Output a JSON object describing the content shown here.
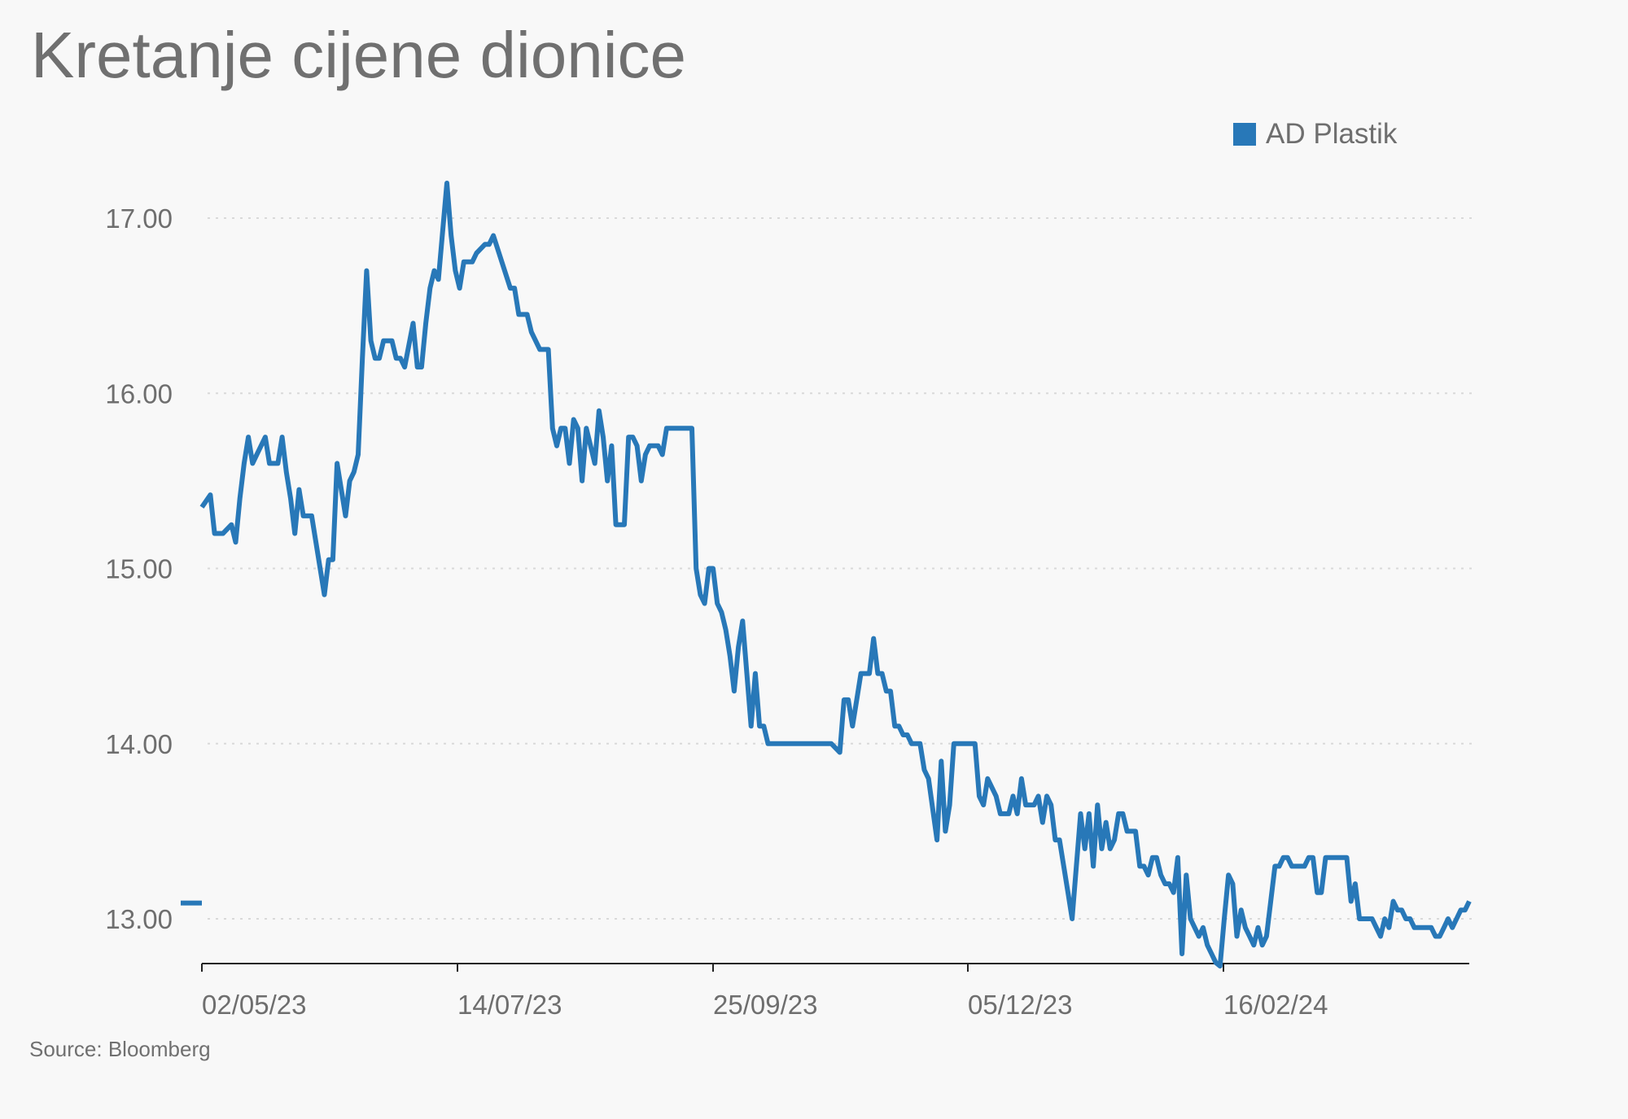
{
  "title": "Kretanje cijene dionice",
  "source": "Source: Bloomberg",
  "colors": {
    "series": "#2878b8",
    "grid": "#d9d9d9",
    "axis": "#222222"
  },
  "chart_data": {
    "type": "line",
    "title": "Kretanje cijene dionice",
    "xlabel": "",
    "ylabel": "",
    "ylim": [
      12.73,
      17.2
    ],
    "y_ticks": [
      "13.00",
      "14.00",
      "15.00",
      "16.00",
      "17.00"
    ],
    "x_ticks": [
      "02/05/23",
      "14/07/23",
      "25/09/23",
      "05/12/23",
      "16/02/24"
    ],
    "grid": "horizontal dotted",
    "legend": "top-right",
    "series": [
      {
        "name": "AD Plastik",
        "x": [
          0,
          2,
          3,
          5,
          7,
          8,
          9,
          10,
          11,
          12,
          13,
          15,
          16,
          17,
          18,
          19,
          20,
          21,
          22,
          23,
          24,
          25,
          26,
          28,
          29,
          30,
          31,
          32,
          34,
          35,
          36,
          37,
          38,
          39,
          40,
          41,
          42,
          43,
          45,
          46,
          47,
          48,
          50,
          51,
          52,
          53,
          54,
          55,
          56,
          58,
          59,
          60,
          61,
          62,
          63,
          64,
          65,
          67,
          68,
          69,
          71,
          73,
          74,
          75,
          76,
          77,
          78,
          80,
          81,
          82,
          83,
          84,
          85,
          86,
          87,
          88,
          89,
          90,
          91,
          93,
          94,
          95,
          96,
          97,
          98,
          99,
          100,
          101,
          102,
          103,
          104,
          105,
          106,
          107,
          108,
          109,
          110,
          112,
          113,
          114,
          115,
          116,
          117,
          118,
          119,
          120,
          121,
          122,
          123,
          124,
          125,
          126,
          127,
          128,
          129,
          130,
          131,
          132,
          133,
          134,
          135,
          136,
          137,
          139,
          140,
          141,
          143,
          144,
          145,
          146,
          147,
          148,
          149,
          151,
          152,
          153,
          154,
          155,
          156,
          158,
          159,
          160,
          161,
          162,
          163,
          164,
          165,
          166,
          167,
          168,
          169,
          170,
          171,
          172,
          174,
          175,
          176,
          177,
          178,
          179,
          180,
          182,
          183,
          184,
          185,
          186,
          187,
          188,
          189,
          190,
          191,
          192,
          193,
          194,
          195,
          196,
          197,
          198,
          199,
          200,
          201,
          202,
          203,
          204,
          205,
          206,
          207,
          208,
          209,
          210,
          211,
          212,
          213,
          214,
          215,
          216,
          217,
          218,
          219,
          220,
          221,
          222,
          223,
          224,
          225,
          226,
          227,
          228,
          229,
          230,
          231,
          232,
          233,
          234,
          235,
          236,
          237,
          238,
          239,
          240,
          241,
          242,
          243,
          244,
          245,
          246,
          247,
          248,
          249,
          250,
          251,
          252,
          253,
          254,
          255,
          256,
          257,
          258,
          259,
          260,
          261,
          262,
          263,
          264,
          265,
          266,
          267,
          268,
          269,
          270,
          271,
          272,
          273,
          274,
          275,
          276,
          277,
          278,
          279,
          280,
          281,
          282,
          283,
          284,
          285,
          286,
          287,
          288,
          289,
          290,
          291,
          292,
          293,
          294,
          295,
          296,
          297,
          298,
          299,
          300
        ],
        "y": [
          15.35,
          15.42,
          15.2,
          15.2,
          15.25,
          15.15,
          15.4,
          15.6,
          15.75,
          15.6,
          15.65,
          15.75,
          15.6,
          15.6,
          15.6,
          15.75,
          15.55,
          15.4,
          15.2,
          15.45,
          15.3,
          15.3,
          15.3,
          15.0,
          14.85,
          15.05,
          15.05,
          15.6,
          15.3,
          15.5,
          15.55,
          15.65,
          16.2,
          16.7,
          16.3,
          16.2,
          16.2,
          16.3,
          16.3,
          16.2,
          16.2,
          16.15,
          16.4,
          16.15,
          16.15,
          16.4,
          16.6,
          16.7,
          16.65,
          17.2,
          16.9,
          16.7,
          16.6,
          16.75,
          16.75,
          16.75,
          16.8,
          16.85,
          16.85,
          16.9,
          16.75,
          16.6,
          16.6,
          16.45,
          16.45,
          16.45,
          16.35,
          16.25,
          16.25,
          16.25,
          15.8,
          15.7,
          15.8,
          15.8,
          15.6,
          15.85,
          15.8,
          15.5,
          15.8,
          15.6,
          15.9,
          15.75,
          15.5,
          15.7,
          15.25,
          15.25,
          15.25,
          15.75,
          15.75,
          15.7,
          15.5,
          15.65,
          15.7,
          15.7,
          15.7,
          15.65,
          15.8,
          15.8,
          15.8,
          15.8,
          15.8,
          15.8,
          15.0,
          14.85,
          14.8,
          15.0,
          15.0,
          14.8,
          14.75,
          14.65,
          14.5,
          14.3,
          14.55,
          14.7,
          14.4,
          14.1,
          14.4,
          14.1,
          14.1,
          14.0,
          14.0,
          14.0,
          14.0,
          14.0,
          14.0,
          14.0,
          14.0,
          14.0,
          14.0,
          14.0,
          14.0,
          14.0,
          14.0,
          13.95,
          14.25,
          14.25,
          14.1,
          14.25,
          14.4,
          14.4,
          14.6,
          14.4,
          14.4,
          14.3,
          14.3,
          14.1,
          14.1,
          14.05,
          14.05,
          14.0,
          14.0,
          14.0,
          13.85,
          13.8,
          13.45,
          13.9,
          13.5,
          13.65,
          14.0,
          14.0,
          14.0,
          14.0,
          14.0,
          13.7,
          13.65,
          13.8,
          13.75,
          13.7,
          13.6,
          13.6,
          13.6,
          13.7,
          13.6,
          13.8,
          13.65,
          13.65,
          13.65,
          13.7,
          13.55,
          13.7,
          13.65,
          13.45,
          13.45,
          13.3,
          13.15,
          13.0,
          13.3,
          13.6,
          13.4,
          13.6,
          13.3,
          13.65,
          13.4,
          13.55,
          13.4,
          13.45,
          13.6,
          13.6,
          13.5,
          13.5,
          13.5,
          13.3,
          13.3,
          13.25,
          13.35,
          13.35,
          13.25,
          13.2,
          13.2,
          13.15,
          13.35,
          12.8,
          13.25,
          13.0,
          12.95,
          12.9,
          12.95,
          12.85,
          12.8,
          12.75,
          12.73,
          13.0,
          13.25,
          13.2,
          12.9,
          13.05,
          12.95,
          12.9,
          12.85,
          12.95,
          12.85,
          12.9,
          13.1,
          13.3,
          13.3,
          13.35,
          13.35,
          13.3,
          13.3,
          13.3,
          13.3,
          13.35,
          13.35,
          13.15,
          13.15,
          13.35,
          13.35,
          13.35,
          13.35,
          13.35,
          13.35,
          13.1,
          13.2,
          13.0,
          13.0,
          13.0,
          13.0,
          12.95,
          12.9,
          13.0,
          12.95,
          13.1,
          13.05,
          13.05,
          13.0,
          13.0,
          12.95,
          12.95,
          12.95,
          12.95,
          12.95,
          12.9,
          12.9,
          12.95,
          13.0,
          12.95,
          13.0,
          13.05,
          13.05,
          13.1
        ]
      }
    ]
  }
}
